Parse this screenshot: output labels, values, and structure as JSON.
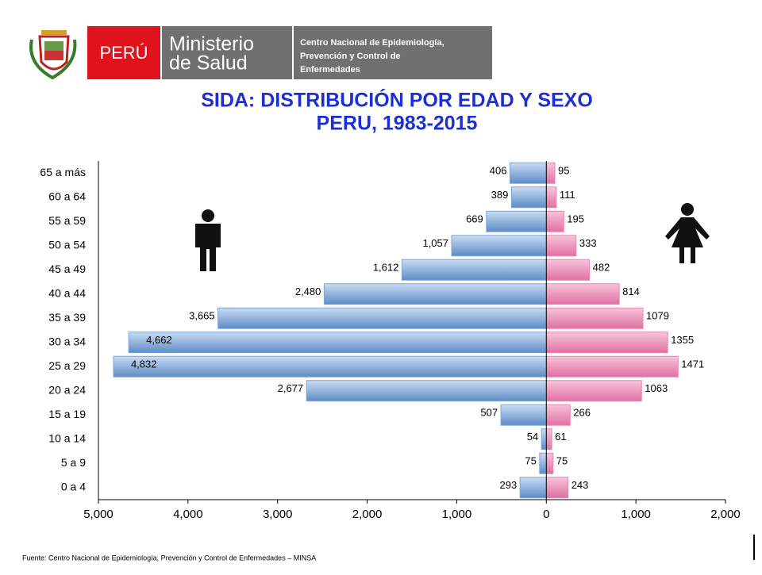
{
  "header": {
    "country": "PERÚ",
    "ministry_line1": "Ministerio",
    "ministry_line2": "de Salud",
    "center_lines": [
      "Centro Nacional de Epidemiología,",
      "Prevención y Control de",
      "Enfermedades"
    ]
  },
  "chart_data": {
    "type": "bar",
    "orientation": "horizontal-pyramid",
    "title": "SIDA: DISTRIBUCIÓN POR EDAD Y SEXO",
    "subtitle": "PERU, 1983-2015",
    "categories": [
      "65 a más",
      "60 a 64",
      "55 a 59",
      "50 a 54",
      "45 a 49",
      "40 a 44",
      "35 a 39",
      "30 a 34",
      "25 a 29",
      "20 a 24",
      "15 a 19",
      "10 a 14",
      "5 a 9",
      "0 a 4"
    ],
    "series": [
      {
        "color": "#7fa6d6",
        "values": [
          -406,
          -389,
          -669,
          -1057,
          -1612,
          -2480,
          -3665,
          -4662,
          -4832,
          -2677,
          -507,
          -54,
          -75,
          -293
        ],
        "value_labels": [
          "406",
          "389",
          "669",
          "1,057",
          "1,612",
          "2,480",
          "3,665",
          "4,662",
          "4,832",
          "2,677",
          "507",
          "54",
          "75",
          "293"
        ]
      },
      {
        "color": "#e986b2",
        "values": [
          95,
          111,
          195,
          333,
          482,
          814,
          1079,
          1355,
          1471,
          1063,
          266,
          61,
          75,
          243
        ]
      }
    ],
    "xlim": [
      -5000,
      2000
    ],
    "xticks": [
      {
        "value": -5000,
        "label": "5,000"
      },
      {
        "value": -4000,
        "label": "4,000"
      },
      {
        "value": -3000,
        "label": "3,000"
      },
      {
        "value": -2000,
        "label": "2,000"
      },
      {
        "value": -1000,
        "label": "1,000"
      },
      0,
      {
        "value": 1000,
        "label": "1,000"
      },
      {
        "value": 2000,
        "label": "2,000"
      }
    ],
    "source": "Fuente: Centro Nacional de Epidemiología, Prevención y Control de Enfermedades – MINSA"
  }
}
